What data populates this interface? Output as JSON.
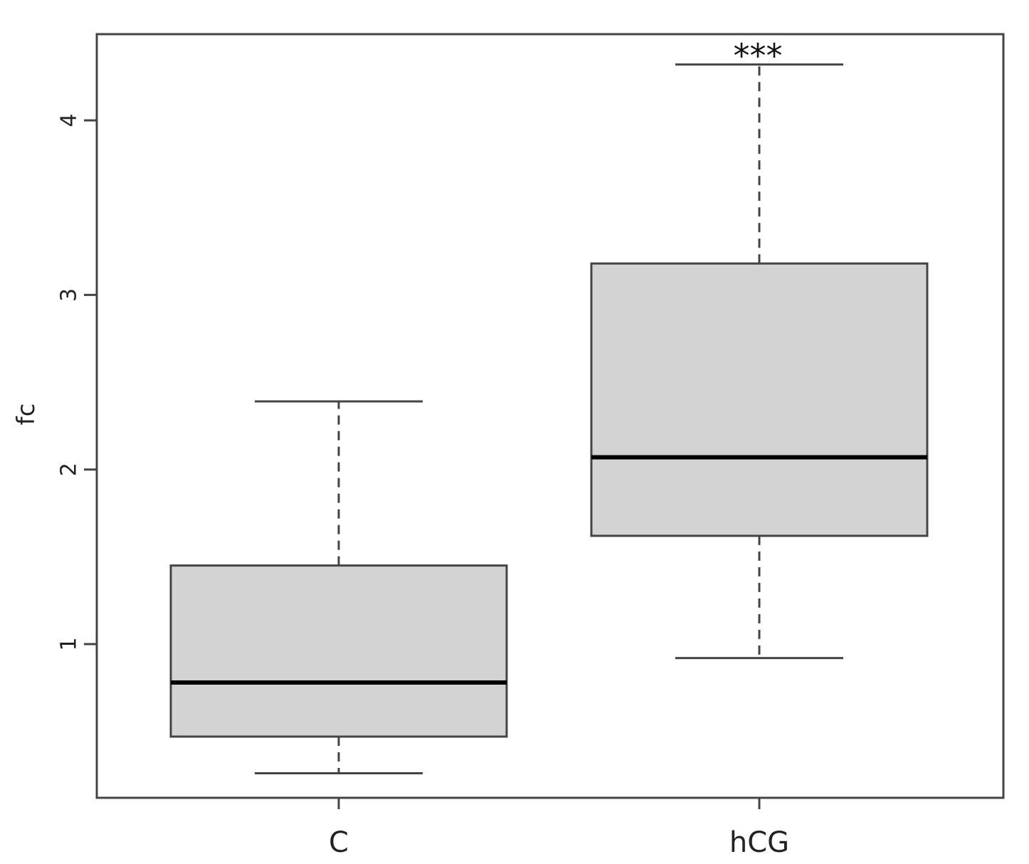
{
  "chart_data": {
    "type": "boxplot",
    "title": "",
    "xlabel": "",
    "ylabel": "fc",
    "categories": [
      "C",
      "hCG"
    ],
    "yticks": [
      1,
      2,
      3,
      4
    ],
    "ylim": [
      0.1,
      4.48
    ],
    "grid": false,
    "box_fill": "#d3d3d3",
    "line_color": "#444444",
    "median_color": "#000000",
    "boxes": [
      {
        "category": "C",
        "whisker_low": 0.26,
        "q1": 0.47,
        "median": 0.78,
        "q3": 1.45,
        "whisker_high": 2.39,
        "annotation": ""
      },
      {
        "category": "hCG",
        "whisker_low": 0.92,
        "q1": 1.62,
        "median": 2.07,
        "q3": 3.18,
        "whisker_high": 4.32,
        "annotation": "***"
      }
    ]
  }
}
